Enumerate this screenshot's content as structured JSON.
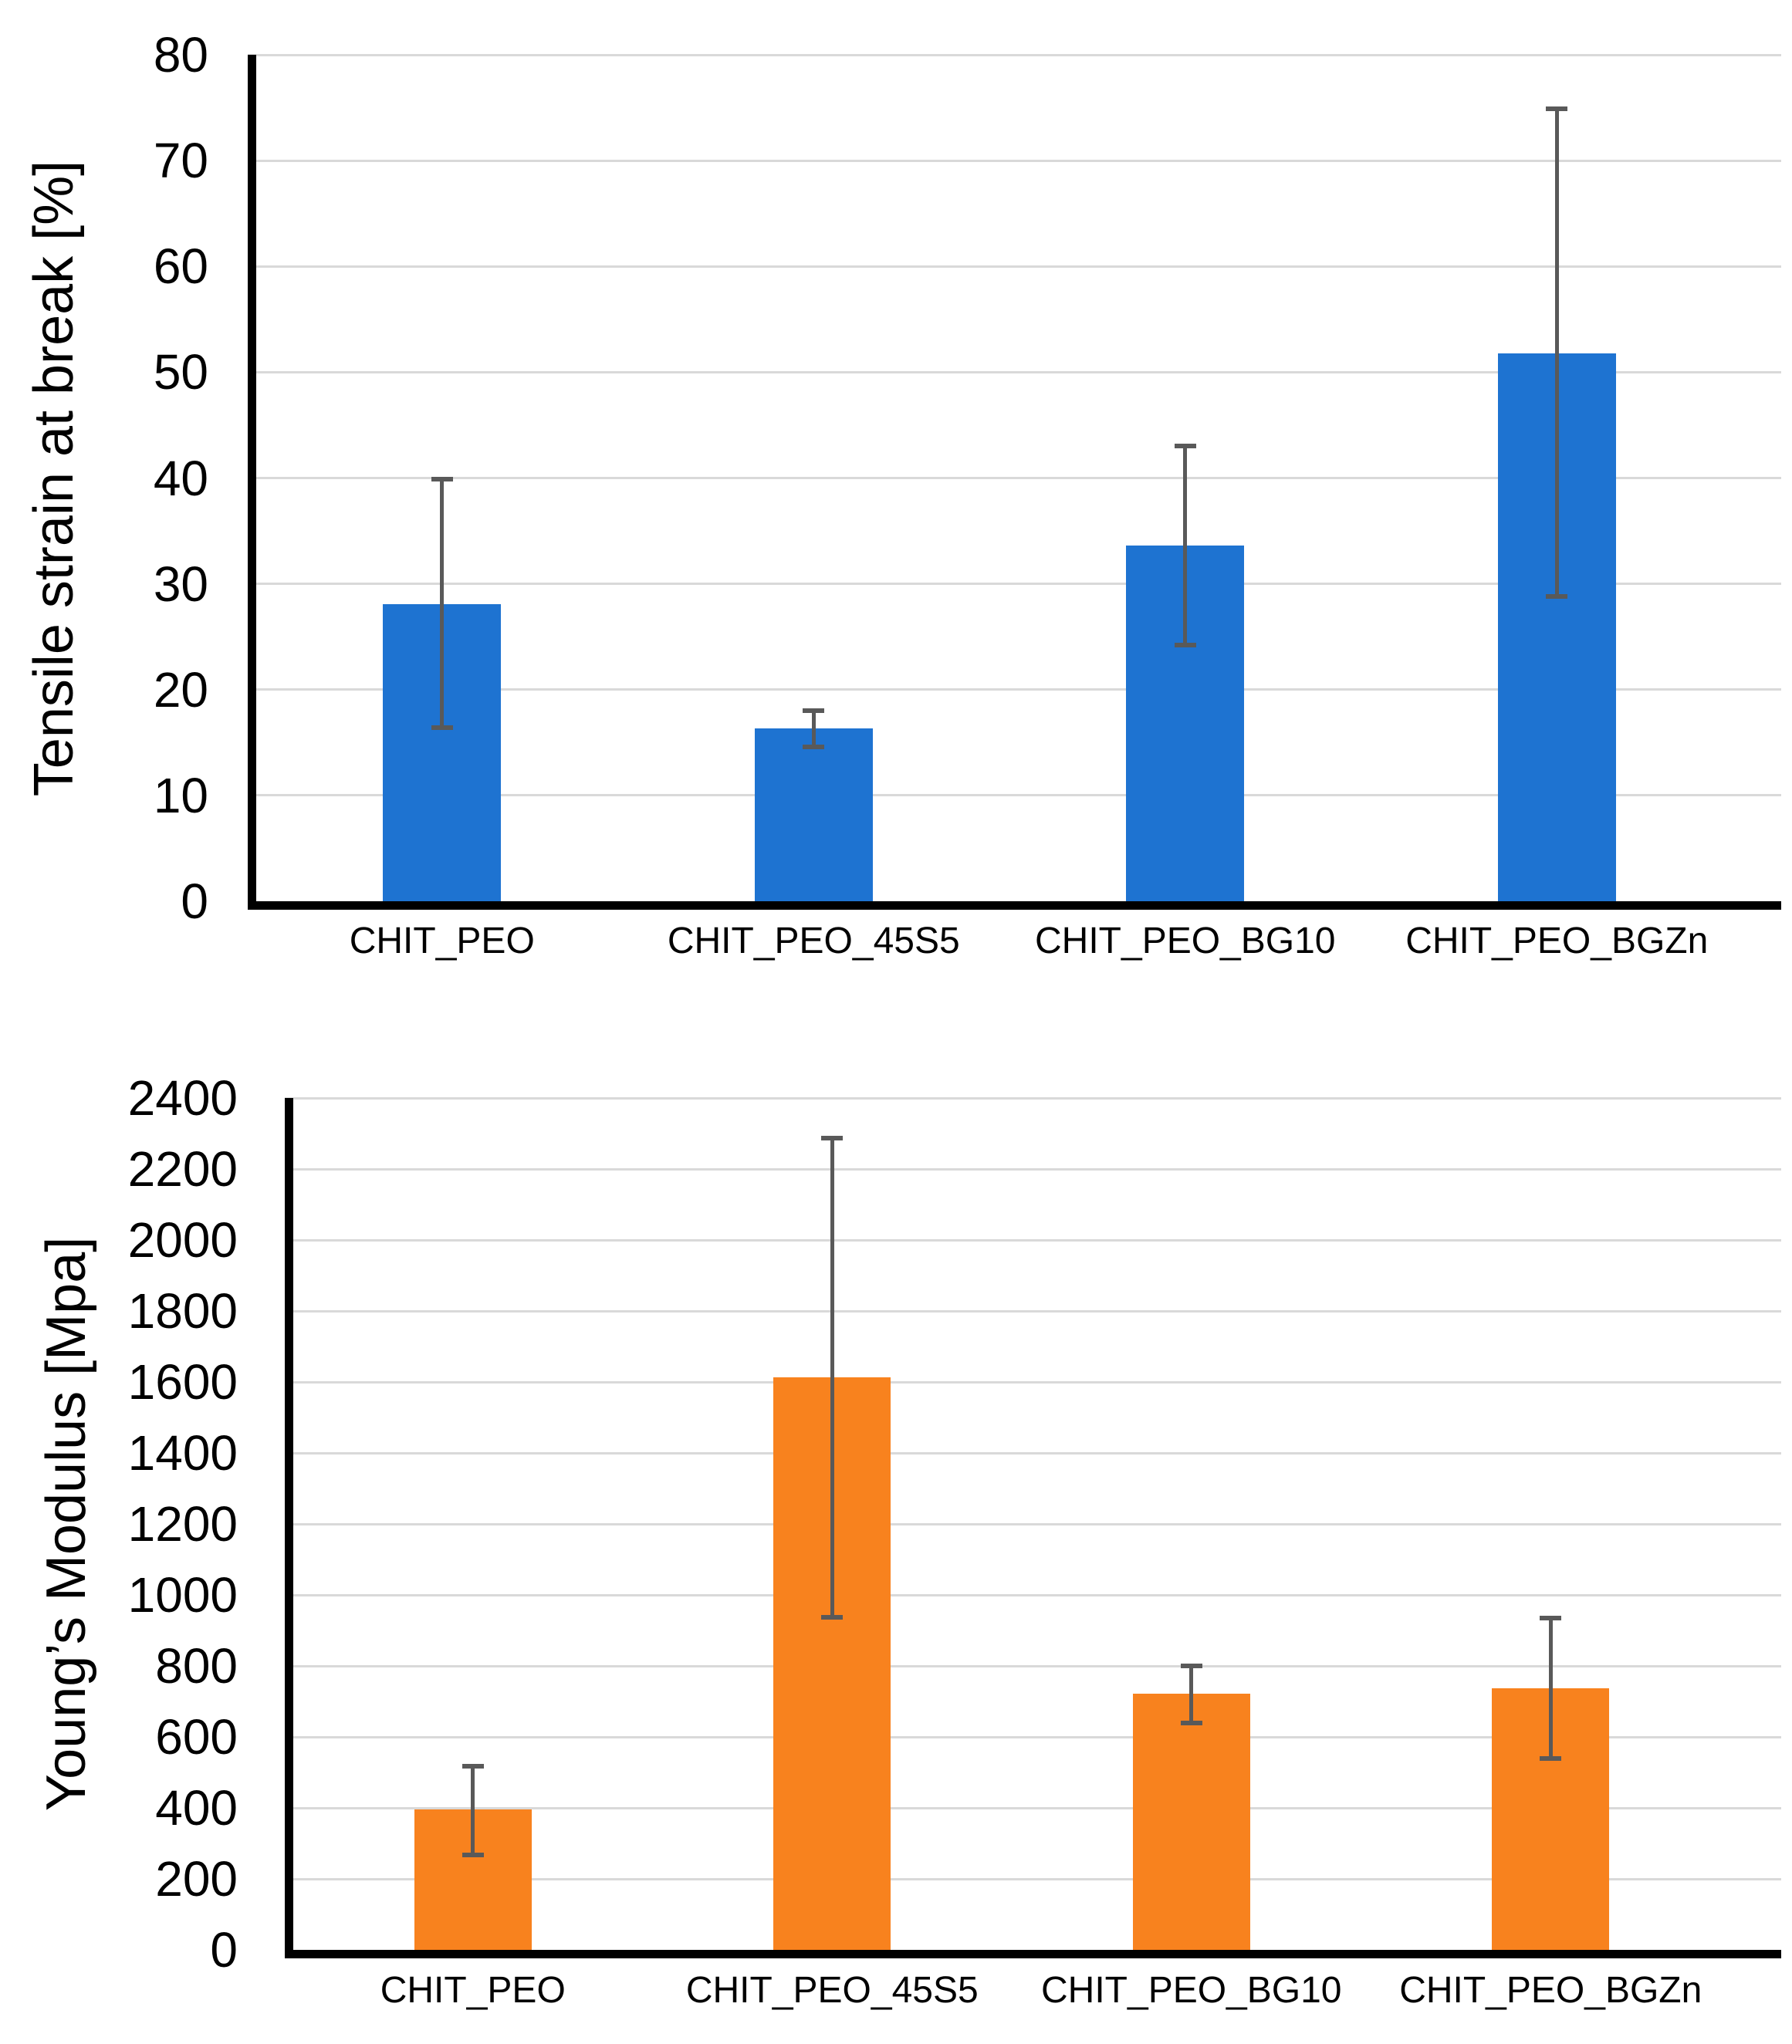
{
  "page": {
    "background": "#ffffff"
  },
  "chart_data": [
    {
      "type": "bar",
      "title": "",
      "xlabel": "",
      "ylabel": "Tensile strain at break [%]",
      "categories": [
        "CHIT_PEO",
        "CHIT_PEO_45S5",
        "CHIT_PEO_BG10",
        "CHIT_PEO_BGZn"
      ],
      "values": [
        28.1,
        16.3,
        33.6,
        51.8
      ],
      "error_low": [
        16.4,
        14.6,
        24.2,
        28.8
      ],
      "error_high": [
        39.9,
        18.0,
        43.0,
        74.9
      ],
      "ylim": [
        0,
        80
      ],
      "ytick_step": 10,
      "ytick_labels": [
        "0",
        "10",
        "20",
        "30",
        "40",
        "50",
        "60",
        "70",
        "80"
      ],
      "grid": true,
      "legend": false,
      "bar_color": "#1e73d1",
      "error_color": "#595959",
      "axis_color": "#000000",
      "grid_color": "#d9d9d9"
    },
    {
      "type": "bar",
      "title": "",
      "xlabel": "",
      "ylabel": "Young’s Modulus [Mpa]",
      "categories": [
        "CHIT_PEO",
        "CHIT_PEO_45S5",
        "CHIT_PEO_BG10",
        "CHIT_PEO_BGZn"
      ],
      "values": [
        396,
        1613,
        722,
        737
      ],
      "error_low": [
        267,
        938,
        640,
        540
      ],
      "error_high": [
        517,
        2288,
        800,
        934
      ],
      "ylim": [
        0,
        2400
      ],
      "ytick_step": 200,
      "ytick_labels": [
        "0",
        "200",
        "400",
        "600",
        "800",
        "1000",
        "1200",
        "1400",
        "1600",
        "1800",
        "2000",
        "2200",
        "2400"
      ],
      "grid": true,
      "legend": false,
      "bar_color": "#f8821e",
      "error_color": "#595959",
      "axis_color": "#000000",
      "grid_color": "#d9d9d9"
    }
  ]
}
